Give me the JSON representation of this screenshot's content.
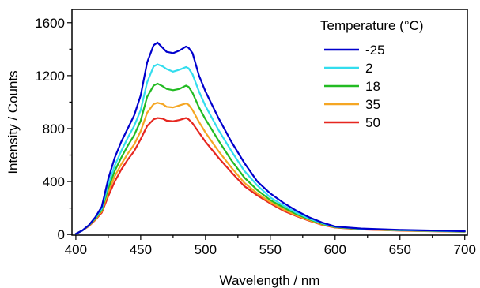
{
  "chart_data": {
    "type": "line",
    "xlabel": "Wavelength / nm",
    "ylabel": "Intensity / Counts",
    "xlim": [
      397,
      702
    ],
    "ylim": [
      -5,
      1700
    ],
    "x_ticks": [
      400,
      450,
      500,
      550,
      600,
      650,
      700
    ],
    "y_ticks": [
      0,
      400,
      800,
      1200,
      1600
    ],
    "x_minor_ticks": [
      425,
      475,
      525,
      575,
      625,
      675
    ],
    "y_minor_ticks": [
      200,
      600,
      1000,
      1400
    ],
    "grid": false,
    "legend": {
      "title": "Temperature (°C)",
      "placement": "top-right"
    },
    "x": [
      400,
      405,
      410,
      415,
      420,
      425,
      430,
      435,
      440,
      445,
      450,
      455,
      460,
      463,
      467,
      470,
      475,
      480,
      485,
      487,
      490,
      495,
      500,
      510,
      520,
      530,
      540,
      550,
      560,
      570,
      580,
      590,
      600,
      620,
      650,
      700
    ],
    "series": [
      {
        "name": "-25",
        "color": "#0000cd",
        "values": [
          5,
          30,
          70,
          130,
          210,
          420,
          580,
          700,
          800,
          900,
          1050,
          1300,
          1430,
          1450,
          1410,
          1380,
          1370,
          1390,
          1420,
          1410,
          1370,
          1200,
          1080,
          880,
          700,
          540,
          400,
          310,
          240,
          180,
          130,
          90,
          60,
          45,
          35,
          25
        ]
      },
      {
        "name": "2",
        "color": "#33ddee",
        "values": [
          5,
          30,
          70,
          125,
          195,
          380,
          520,
          630,
          730,
          820,
          940,
          1150,
          1270,
          1285,
          1270,
          1250,
          1230,
          1245,
          1265,
          1255,
          1210,
          1080,
          970,
          790,
          630,
          480,
          370,
          280,
          220,
          165,
          120,
          85,
          58,
          43,
          33,
          23
        ]
      },
      {
        "name": "18",
        "color": "#22bb22",
        "values": [
          5,
          30,
          68,
          120,
          185,
          350,
          480,
          580,
          670,
          750,
          860,
          1040,
          1125,
          1140,
          1120,
          1100,
          1090,
          1100,
          1125,
          1115,
          1070,
          960,
          870,
          710,
          560,
          430,
          335,
          260,
          205,
          155,
          115,
          80,
          56,
          42,
          32,
          22
        ]
      },
      {
        "name": "35",
        "color": "#f5a623",
        "values": [
          5,
          30,
          65,
          115,
          175,
          320,
          440,
          530,
          610,
          680,
          780,
          920,
          985,
          995,
          985,
          965,
          960,
          975,
          990,
          980,
          940,
          850,
          770,
          630,
          505,
          390,
          310,
          245,
          190,
          145,
          108,
          76,
          54,
          40,
          30,
          21
        ]
      },
      {
        "name": "50",
        "color": "#e6261f",
        "values": [
          5,
          30,
          62,
          110,
          165,
          290,
          400,
          490,
          565,
          630,
          720,
          820,
          870,
          880,
          875,
          860,
          855,
          865,
          880,
          870,
          840,
          770,
          700,
          580,
          470,
          365,
          295,
          235,
          180,
          140,
          104,
          73,
          52,
          38,
          29,
          20
        ]
      }
    ]
  }
}
